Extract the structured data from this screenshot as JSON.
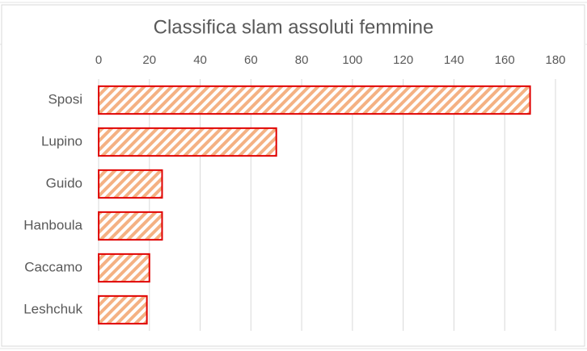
{
  "chart_data": {
    "type": "bar",
    "orientation": "horizontal",
    "title": "Classifica slam assoluti femmine",
    "categories": [
      "Sposi",
      "Lupino",
      "Guido",
      "Hanboula",
      "Caccamo",
      "Leshchuk"
    ],
    "values": [
      170,
      70,
      25,
      25,
      20,
      19
    ],
    "color": "#f4b183",
    "edge_color": "#e00000",
    "pattern": "diagonal-hatch",
    "xlim": [
      0,
      180
    ],
    "xticks": [
      0,
      20,
      40,
      60,
      80,
      100,
      120,
      140,
      160,
      180
    ],
    "x_axis_position": "top",
    "grid": true
  }
}
